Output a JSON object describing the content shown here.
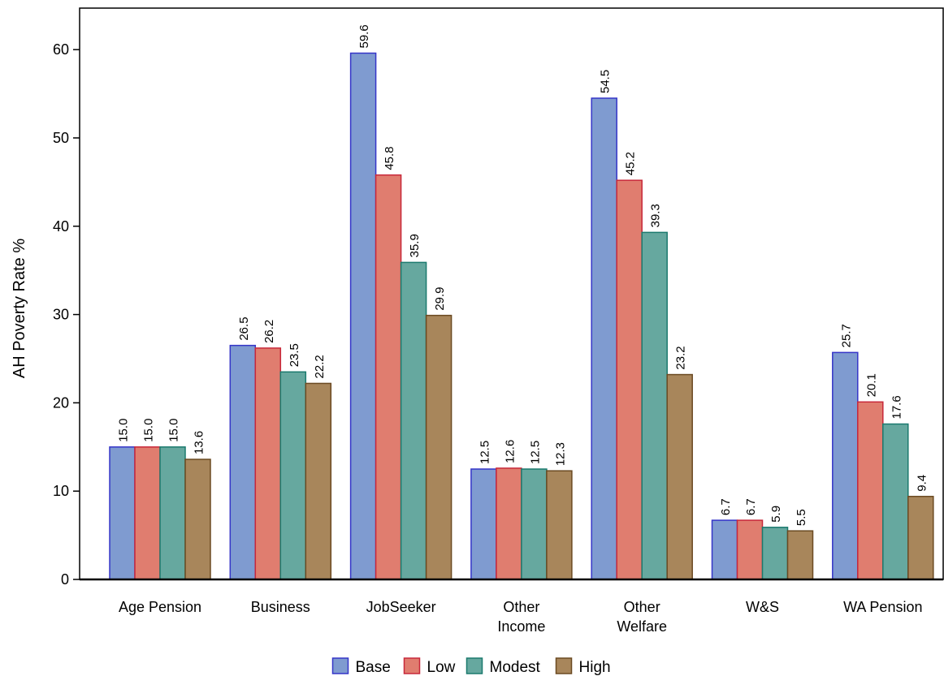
{
  "chart_data": {
    "type": "bar",
    "y_label": "AH Poverty Rate %",
    "categories": [
      "Age Pension",
      "Business",
      "JobSeeker",
      "Other\nIncome",
      "Other\nWelfare",
      "W&S",
      "WA Pension"
    ],
    "series": [
      {
        "name": "Base",
        "color": "#7f9bd0",
        "edge": "#3535c8",
        "values": [
          15.0,
          26.5,
          59.6,
          12.5,
          54.5,
          6.7,
          25.7
        ],
        "value_labels": [
          "15.0",
          "26.5",
          "59.6",
          "12.5",
          "54.5",
          "6.7",
          "25.7"
        ]
      },
      {
        "name": "Low",
        "color": "#e07d6f",
        "edge": "#c8283a",
        "values": [
          15.0,
          26.2,
          45.8,
          12.6,
          45.2,
          6.7,
          20.1
        ],
        "value_labels": [
          "15.0",
          "26.2",
          "45.8",
          "12.6",
          "45.2",
          "6.7",
          "20.1"
        ]
      },
      {
        "name": "Modest",
        "color": "#66a89f",
        "edge": "#1b7a6e",
        "values": [
          15.0,
          23.5,
          35.9,
          12.5,
          39.3,
          5.9,
          17.6
        ],
        "value_labels": [
          "15.0",
          "23.5",
          "35.9",
          "12.5",
          "39.3",
          "5.9",
          "17.6"
        ]
      },
      {
        "name": "High",
        "color": "#a8865b",
        "edge": "#6b4a22",
        "values": [
          13.6,
          22.2,
          29.9,
          12.3,
          23.2,
          5.5,
          9.4
        ],
        "value_labels": [
          "13.6",
          "22.2",
          "29.9",
          "12.3",
          "23.2",
          "5.5",
          "9.4"
        ]
      }
    ],
    "ylim": [
      0,
      64.7
    ],
    "yticks": [
      0,
      10,
      20,
      30,
      40,
      50,
      60
    ],
    "legend": "bottom"
  }
}
